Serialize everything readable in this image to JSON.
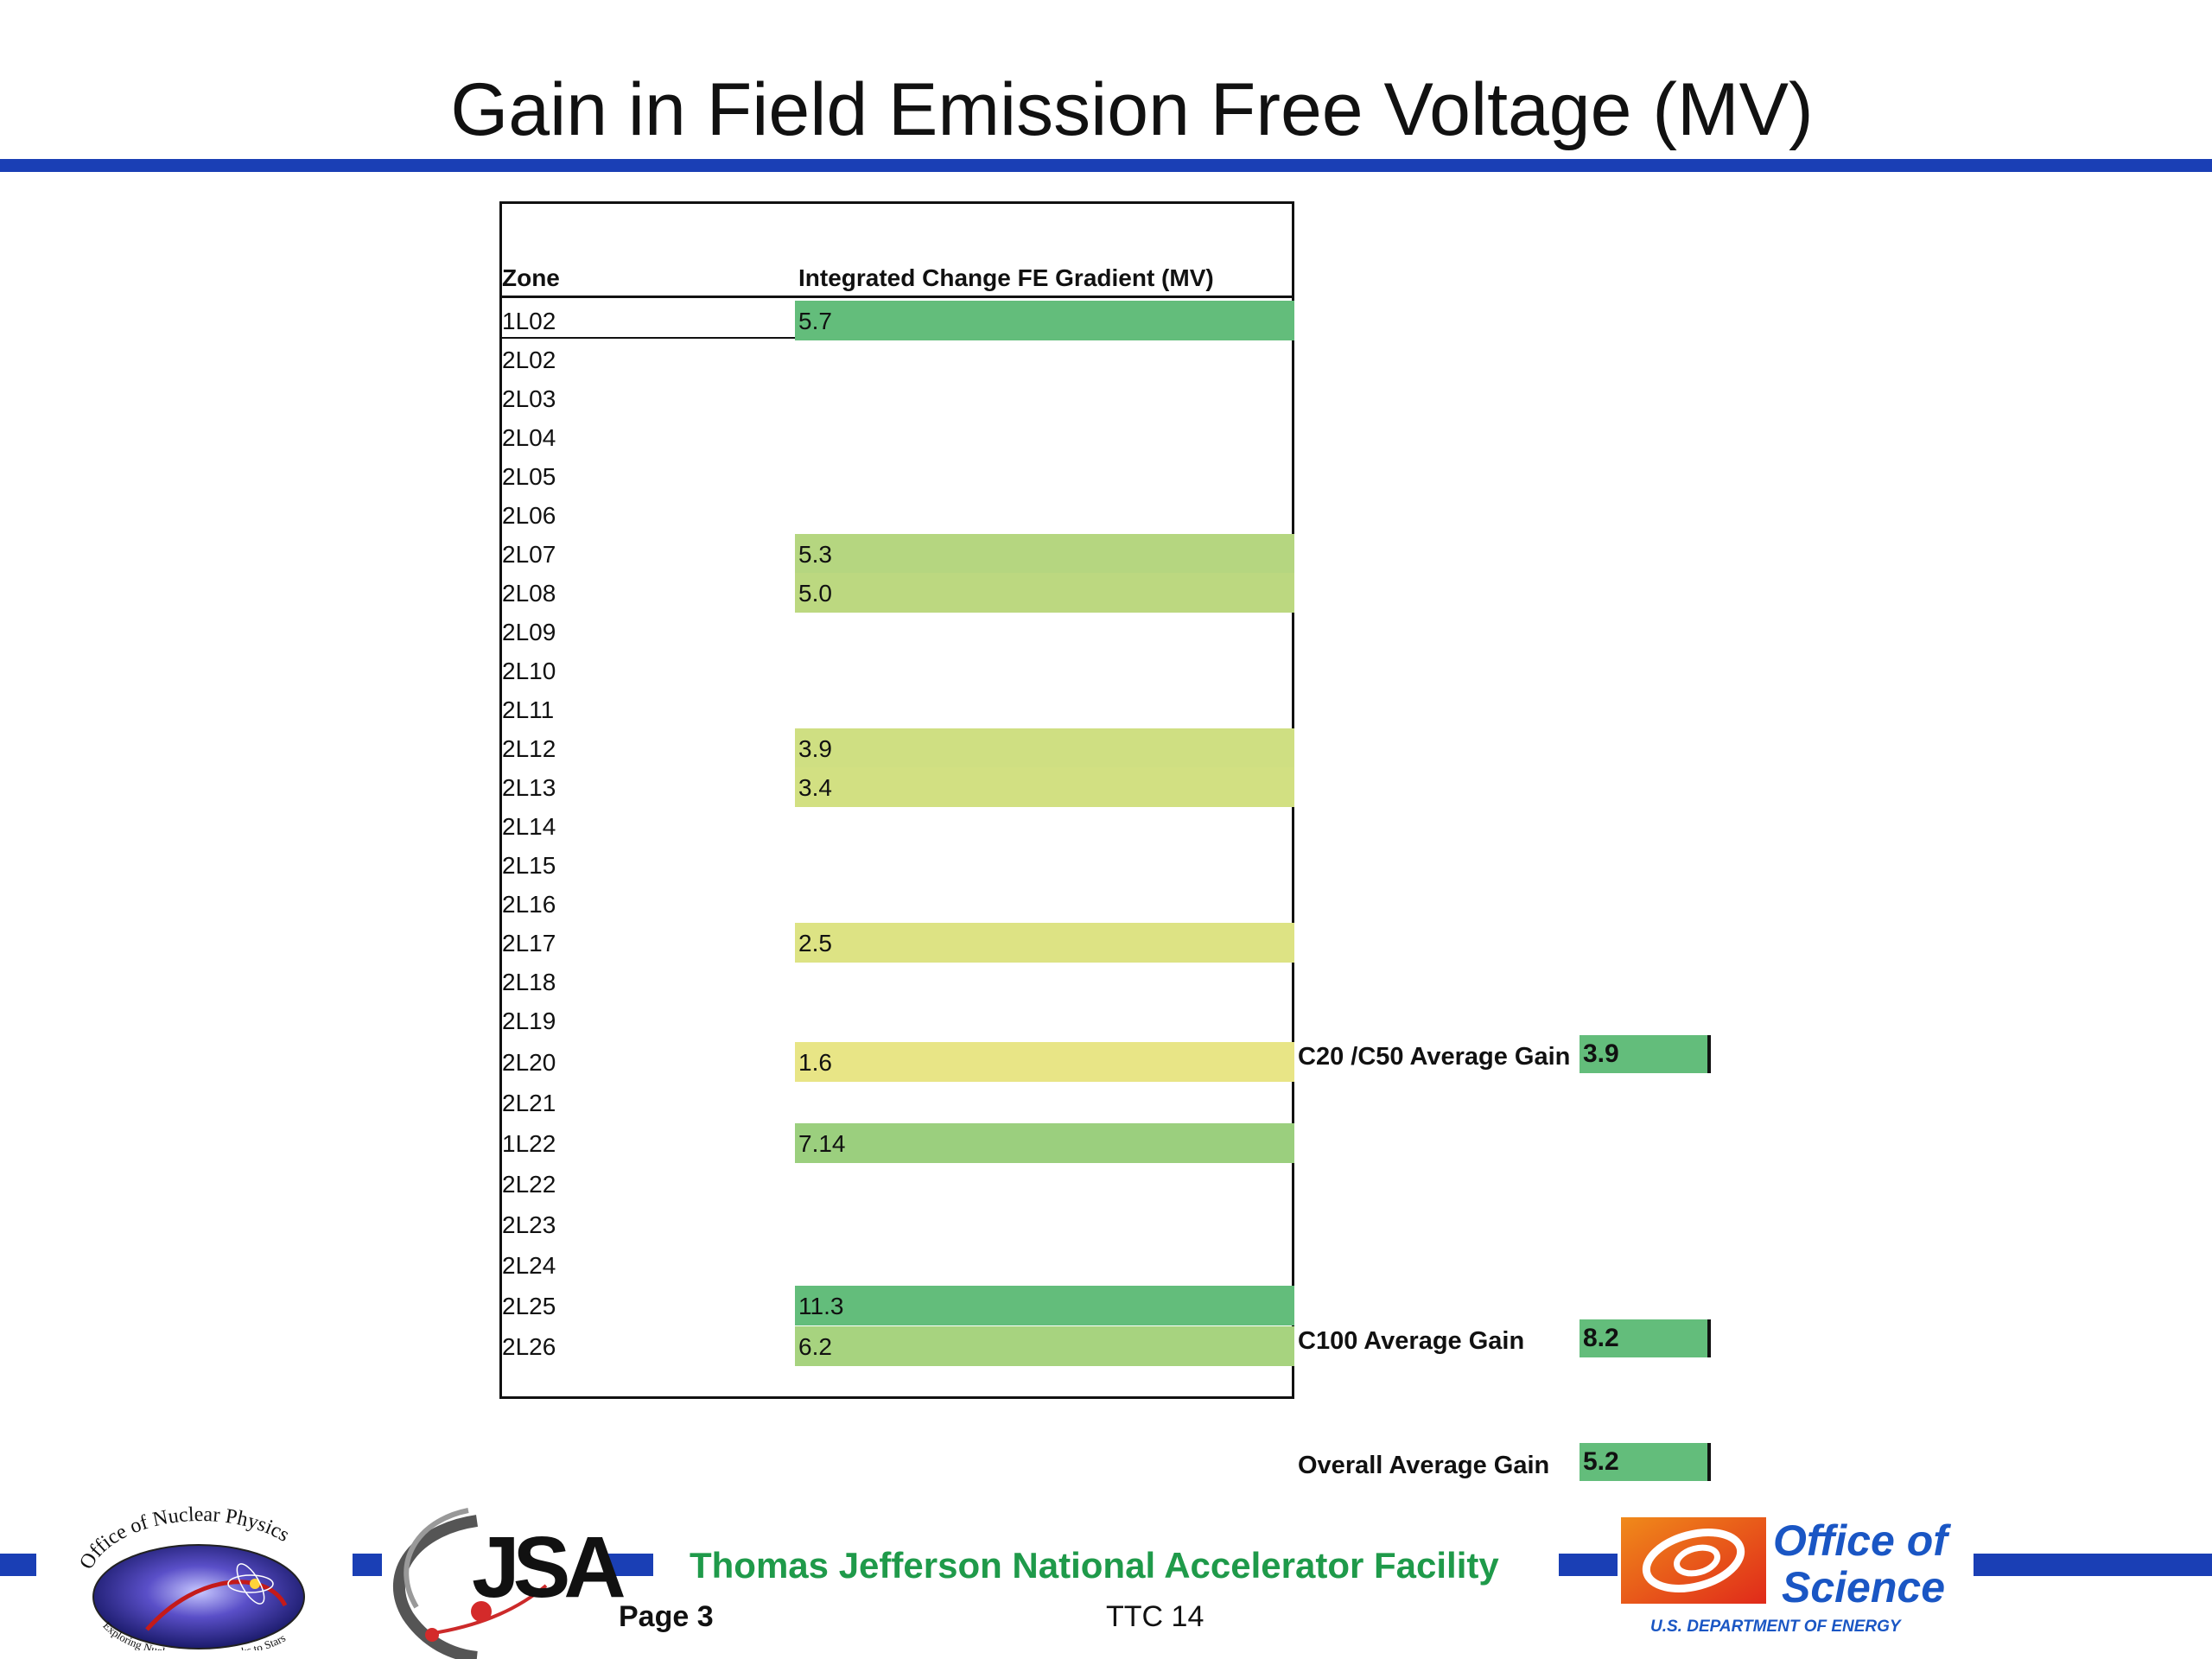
{
  "slide": {
    "title": "Gain in Field Emission Free Voltage (MV)",
    "accent_color": "#1a3fb5"
  },
  "table": {
    "header_zone": "Zone",
    "header_gain": "Integrated Change FE Gradient (MV)",
    "rows": [
      {
        "zone": "1L02",
        "value": "5.7",
        "color": "#63bd7b"
      },
      {
        "zone": "2L02",
        "value": "",
        "color": ""
      },
      {
        "zone": "2L03",
        "value": "",
        "color": ""
      },
      {
        "zone": "2L04",
        "value": "",
        "color": ""
      },
      {
        "zone": "2L05",
        "value": "",
        "color": ""
      },
      {
        "zone": "2L06",
        "value": "",
        "color": ""
      },
      {
        "zone": "2L07",
        "value": "5.3",
        "color": "#b5d680"
      },
      {
        "zone": "2L08",
        "value": "5.0",
        "color": "#bcd880"
      },
      {
        "zone": "2L09",
        "value": "",
        "color": ""
      },
      {
        "zone": "2L10",
        "value": "",
        "color": ""
      },
      {
        "zone": "2L11",
        "value": "",
        "color": ""
      },
      {
        "zone": "2L12",
        "value": "3.9",
        "color": "#cfdf82"
      },
      {
        "zone": "2L13",
        "value": "3.4",
        "color": "#d2e082"
      },
      {
        "zone": "2L14",
        "value": "",
        "color": ""
      },
      {
        "zone": "2L15",
        "value": "",
        "color": ""
      },
      {
        "zone": "2L16",
        "value": "",
        "color": ""
      },
      {
        "zone": "2L17",
        "value": "2.5",
        "color": "#dde384"
      },
      {
        "zone": "2L18",
        "value": "",
        "color": ""
      },
      {
        "zone": "2L19",
        "value": "",
        "color": ""
      },
      {
        "zone": "2L20",
        "value": "1.6",
        "color": "#e8e586"
      },
      {
        "zone": "2L21",
        "value": "",
        "color": ""
      },
      {
        "zone": "1L22",
        "value": "7.14",
        "color": "#9bcf7e"
      },
      {
        "zone": "2L22",
        "value": "",
        "color": ""
      },
      {
        "zone": "2L23",
        "value": "",
        "color": ""
      },
      {
        "zone": "2L24",
        "value": "",
        "color": ""
      },
      {
        "zone": "2L25",
        "value": "11.3",
        "color": "#63bd7b"
      },
      {
        "zone": "2L26",
        "value": "6.2",
        "color": "#a7d37f"
      }
    ]
  },
  "summary": {
    "c20_label": "C20 /C50 Average Gain",
    "c20_value": "3.9",
    "c100_label": "C100 Average Gain",
    "c100_value": "8.2",
    "overall_label": "Overall Average Gain",
    "overall_value": "5.2",
    "box_color": "#63bd7b"
  },
  "footer": {
    "lab_name": "Thomas Jefferson National Accelerator Facility",
    "page": "Page 3",
    "event": "TTC 14",
    "np_logo_top": "Office of Nuclear Physics",
    "np_logo_bottom": "Exploring Nuclear Matter - Quarks to Stars",
    "jsa_logo": "JSA",
    "doe_logo_line1": "Office of",
    "doe_logo_line2": "Science",
    "doe_logo_line3": "U.S. DEPARTMENT OF ENERGY"
  }
}
